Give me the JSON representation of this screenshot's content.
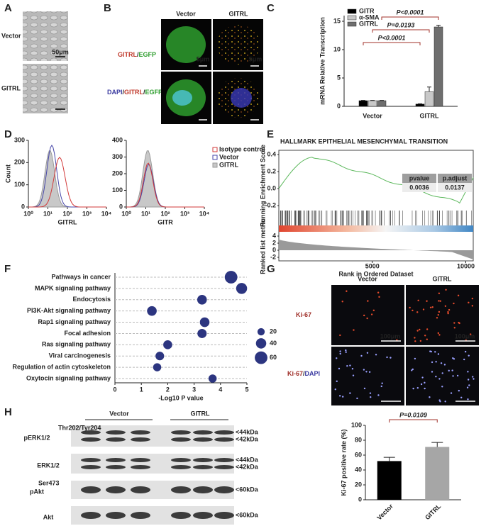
{
  "panel_labels": [
    "A",
    "B",
    "C",
    "D",
    "E",
    "F",
    "G",
    "H"
  ],
  "panel_a": {
    "row_labels": [
      "Vector",
      "GITRL"
    ],
    "scale_bar": "50μm"
  },
  "panel_b": {
    "column_labels": [
      "Vector",
      "GITRL"
    ],
    "row_labels": [
      [
        "GITRL",
        "/",
        "EGFP"
      ],
      [
        "DAPI",
        "/",
        "GITRL",
        "/",
        "EGFP"
      ]
    ],
    "scale_bars": [
      "5μm",
      "5μm"
    ]
  },
  "panel_g": {
    "column_labels": [
      "Vector",
      "GITRL"
    ],
    "row_labels": [
      [
        "Ki-67"
      ],
      [
        "Ki-67",
        "/",
        "DAPI"
      ]
    ],
    "scale_bars": [
      "100μm",
      "100μm"
    ]
  },
  "panel_h": {
    "group_labels": [
      "Vector",
      "GITRL"
    ],
    "rows": [
      {
        "label": "pERK1/2",
        "superscript": "Thr202/Tyr204",
        "markers": [
          "<44kDa",
          "<42kDa"
        ]
      },
      {
        "label": "ERK1/2",
        "markers": [
          "<44kDa",
          "<42kDa"
        ]
      },
      {
        "label": "pAkt",
        "superscript": "Ser473",
        "markers": [
          "<60kDa"
        ]
      },
      {
        "label": "Akt",
        "markers": [
          "<60kDa"
        ]
      }
    ]
  },
  "chart_data": [
    {
      "type": "bar",
      "ylabel": "mRNA Relative Transcription",
      "categories": [
        "Vector",
        "GITRL"
      ],
      "series": [
        {
          "name": "GITR",
          "color": "#000000",
          "values": [
            1,
            0.4
          ],
          "errors": [
            0.05,
            0.05
          ]
        },
        {
          "name": "α-SMA",
          "color": "#c8c8c8",
          "values": [
            1,
            2.6
          ],
          "errors": [
            0.05,
            0.8
          ]
        },
        {
          "name": "GITRL",
          "color": "#6e6e6e",
          "values": [
            1,
            14
          ],
          "errors": [
            0.05,
            0.3
          ]
        }
      ],
      "ylim": [
        0,
        16
      ],
      "yticks": [
        0,
        5,
        10,
        15
      ],
      "legend": "upper left",
      "annotations": [
        "P<0.0001",
        "P=0.0193",
        "P<0.0001"
      ],
      "annotation_color": "#a0302a"
    },
    {
      "type": "flow",
      "ylabel": "Count",
      "xlabel": "GITRL",
      "ylim": [
        0,
        300
      ],
      "yticks": [
        0,
        100,
        200,
        300
      ],
      "log_x": true,
      "xlim": [
        1,
        10000
      ],
      "xticks": [
        {
          "value": 1,
          "label": "10⁰"
        },
        {
          "value": 10,
          "label": "10¹"
        },
        {
          "value": 100,
          "label": "10²"
        },
        {
          "value": 1000,
          "label": "10³"
        },
        {
          "value": 10000,
          "label": "10⁴"
        }
      ]
    },
    {
      "type": "flow",
      "xlabel": "GITR",
      "ylim": [
        0,
        400
      ],
      "yticks": [
        0,
        100,
        200,
        300,
        400
      ],
      "log_x": true,
      "xlim": [
        1,
        10000
      ],
      "xticks": [
        {
          "value": 1,
          "label": "10⁰"
        },
        {
          "value": 10,
          "label": "10¹"
        },
        {
          "value": 100,
          "label": "10²"
        },
        {
          "value": 1000,
          "label": "10³"
        },
        {
          "value": 10000,
          "label": "10⁴"
        }
      ],
      "series": [
        {
          "name": "Isotype control",
          "color": "#d23a3a"
        },
        {
          "name": "Vector",
          "color": "#4646a8"
        },
        {
          "name": "GITRL",
          "color": "#9a9a9a"
        }
      ],
      "legend": "right"
    },
    {
      "type": "gsea",
      "title": "HALLMARK EPITHELIAL MESENCHYMAL TRANSITION",
      "ylabel": "Running Enrichment Score",
      "ylim": [
        -0.25,
        0.45
      ],
      "yticks": [
        -0.2,
        {
          "value": 0,
          "label": "0.0"
        },
        0.2,
        0.4
      ],
      "y2label": "Ranked list metric",
      "y2lim": [
        -3,
        5
      ],
      "y2ticks": [
        -2,
        0,
        2,
        4
      ],
      "xlabel": "Rank in Ordered Dataset",
      "xlim": [
        0,
        10400
      ],
      "xticks": [
        5000,
        10000
      ],
      "color": "#5cb85c",
      "table": {
        "columns": [
          "pvalue",
          "p.adjust"
        ],
        "values": [
          "0.0036",
          "0.0137"
        ]
      }
    },
    {
      "type": "bubble",
      "categories": [
        "Pathways in cancer",
        "MAPK signaling pathway",
        "Endocytosis",
        "PI3K-Akt signaling pathway",
        "Rap1 signaling pathway",
        "Focal adhesion",
        "Ras signaling pathway",
        "Viral carcinogenesis",
        "Regulation of actin cytoskeleton",
        "Oxytocin signaling pathway"
      ],
      "values": [
        4.4,
        4.8,
        3.3,
        1.4,
        3.4,
        3.3,
        2.0,
        1.7,
        1.6,
        3.7
      ],
      "sizes": [
        60,
        45,
        35,
        35,
        35,
        32,
        30,
        28,
        25,
        25
      ],
      "label_colors": [
        "#a0302a",
        "#a0302a",
        "#222222",
        "#a0302a",
        "#222222",
        "#222222",
        "#222222",
        "#222222",
        "#222222",
        "#222222"
      ],
      "color": "#2c3580",
      "xlabel": "-Log10 P value",
      "xlim": [
        0,
        5
      ],
      "xticks": [
        0,
        1,
        2,
        3,
        4,
        5
      ],
      "size_legend": [
        20,
        40,
        60
      ],
      "grid": true
    },
    {
      "type": "bar",
      "ylabel": "Ki-67 positive rate (%)",
      "categories": [
        "Vector",
        "GITRL"
      ],
      "values": [
        52,
        71
      ],
      "errors": [
        5,
        6
      ],
      "colors": [
        "#000000",
        "#a6a6a6"
      ],
      "ylim": [
        0,
        100
      ],
      "yticks": [
        0,
        20,
        40,
        60,
        80,
        100
      ],
      "annotations": [
        "P=0.0109"
      ],
      "annotation_color": "#a0302a"
    }
  ]
}
